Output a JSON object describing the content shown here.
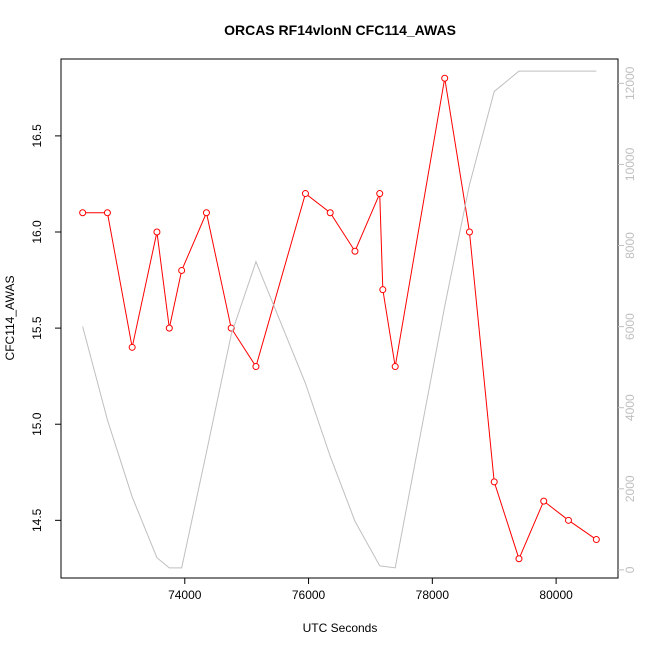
{
  "chart_data": {
    "type": "line",
    "title": "ORCAS RF14vlonN CFC114_AWAS",
    "xlabel": "UTC Seconds",
    "ylabel": "CFC114_AWAS",
    "xlim": [
      72000,
      81000
    ],
    "ylim": [
      14.2,
      16.9
    ],
    "y2lim": [
      -200,
      12600
    ],
    "x_ticks": [
      74000,
      76000,
      78000,
      80000
    ],
    "y_ticks": [
      14.5,
      15.0,
      15.5,
      16.0,
      16.5
    ],
    "y2_ticks": [
      0,
      2000,
      4000,
      6000,
      8000,
      10000,
      12000
    ],
    "series": [
      {
        "color": "#ff0000",
        "axis": "left",
        "markers": true,
        "x": [
          72350,
          72750,
          73150,
          73550,
          73750,
          73950,
          74350,
          74750,
          75150,
          75950,
          76350,
          76750,
          77150,
          77200,
          77400,
          78200,
          78600,
          79000,
          79400,
          79800,
          80200,
          80650
        ],
        "y": [
          16.1,
          16.1,
          15.4,
          16.0,
          15.5,
          15.8,
          16.1,
          15.5,
          15.3,
          16.2,
          16.1,
          15.9,
          16.2,
          15.7,
          15.3,
          16.8,
          16.0,
          14.7,
          14.3,
          14.6,
          14.5,
          14.4
        ]
      },
      {
        "color": "#bfbfbf",
        "axis": "right",
        "markers": false,
        "x": [
          72350,
          72750,
          73150,
          73550,
          73750,
          73950,
          74350,
          74750,
          75150,
          75950,
          76350,
          76750,
          77150,
          77400,
          78200,
          78600,
          79000,
          79400,
          79800,
          80200,
          80650
        ],
        "y": [
          6000,
          3700,
          1800,
          300,
          50,
          50,
          2900,
          5800,
          7600,
          4600,
          2800,
          1200,
          100,
          50,
          6500,
          9500,
          11800,
          12300,
          12300,
          12300,
          12300
        ]
      }
    ]
  }
}
